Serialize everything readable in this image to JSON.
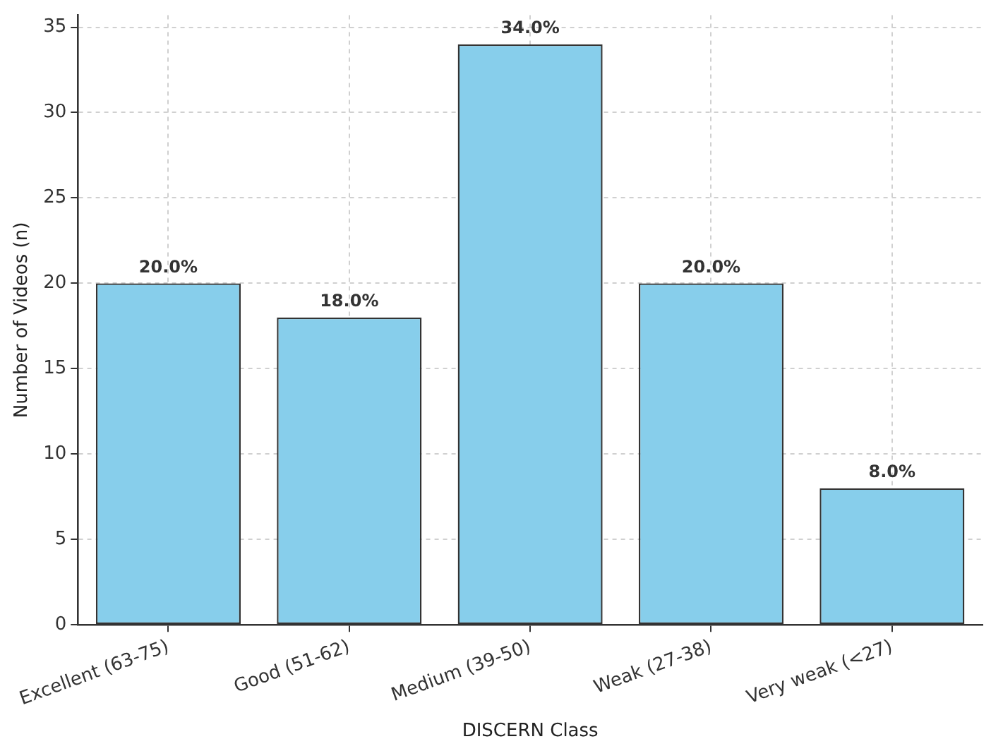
{
  "chart_data": {
    "type": "bar",
    "xlabel": "DISCERN Class",
    "ylabel": "Number of Videos (n)",
    "categories": [
      "Excellent (63-75)",
      "Good (51-62)",
      "Medium (39-50)",
      "Weak (27-38)",
      "Very weak (<27)"
    ],
    "values": [
      20,
      18,
      34,
      20,
      8
    ],
    "color": "#87ceeb",
    "value_labels": [
      "20.0%",
      "18.0%",
      "34.0%",
      "20.0%",
      "8.0%"
    ],
    "ylim": [
      0,
      35.7
    ],
    "yticks": [
      0,
      5,
      10,
      15,
      20,
      25,
      30,
      35
    ],
    "grid": true,
    "legend": false
  }
}
